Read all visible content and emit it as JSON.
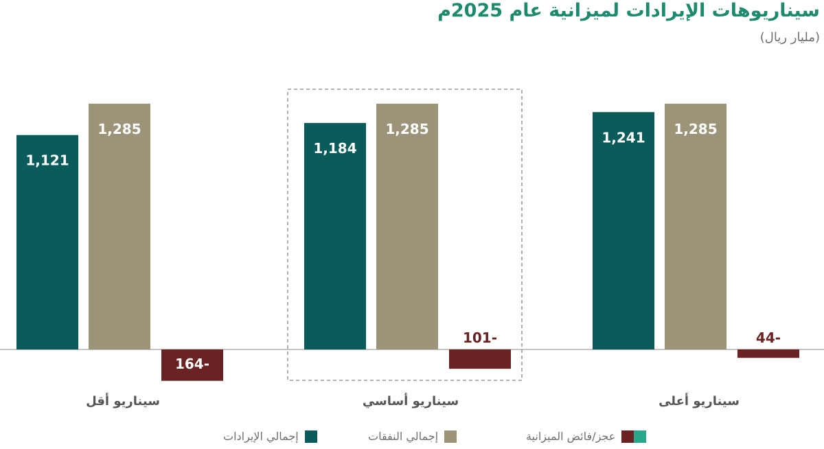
{
  "title": "سيناريوهات الإيرادات لميزانية عام 2025م",
  "subtitle": "(مليار ريال)",
  "colors": {
    "revenue": "#0a5c5a",
    "expenses": "#9c9478",
    "deficit": "#6b2222",
    "surplus": "#2aa68a",
    "axis": "#888888",
    "value_label_light": "#ffffff",
    "value_label_dark": "#6b2222"
  },
  "chart_data": {
    "type": "bar",
    "categories": [
      "سيناريو أقل",
      "سيناريو أساسي",
      "سيناريو أعلى"
    ],
    "series": [
      {
        "name": "إجمالي الإيرادات",
        "values": [
          1121,
          1184,
          1241
        ],
        "labels": [
          "1,121",
          "1,184",
          "1,241"
        ]
      },
      {
        "name": "إجمالي النفقات",
        "values": [
          1285,
          1285,
          1285
        ],
        "labels": [
          "1,285",
          "1,285",
          "1,285"
        ]
      },
      {
        "name": "عجز/فائض الميزانية",
        "values": [
          -164,
          -101,
          -44
        ],
        "labels": [
          "164-",
          "101-",
          "44-"
        ]
      }
    ],
    "highlighted_category": "سيناريو أساسي",
    "legend_position": "bottom"
  },
  "legend": [
    {
      "label": "إجمالي الإيرادات",
      "colors": [
        "#0a5c5a"
      ]
    },
    {
      "label": "إجمالي النفقات",
      "colors": [
        "#9c9478"
      ]
    },
    {
      "label": "عجز/فائض الميزانية",
      "colors": [
        "#2aa68a",
        "#6b2222"
      ]
    }
  ]
}
